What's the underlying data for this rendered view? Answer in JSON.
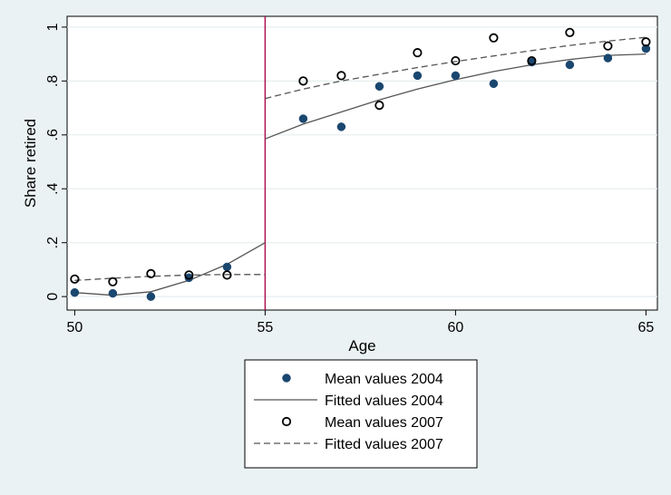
{
  "chart_data": {
    "type": "scatter",
    "xlabel": "Age",
    "ylabel": "Share retired",
    "xlim": [
      49.8,
      65.3
    ],
    "ylim": [
      -0.05,
      1.04
    ],
    "xticks": [
      50,
      55,
      60,
      65
    ],
    "yticks": [
      0,
      0.2,
      0.4,
      0.6,
      0.8,
      1
    ],
    "ytick_labels": [
      "0",
      ".2",
      ".4",
      ".6",
      ".8",
      "1"
    ],
    "grid": true,
    "cutoff_x": 55,
    "cutoff_color": "#b01050",
    "legend_position": "bottom-center",
    "series": [
      {
        "name": "Mean values 2004",
        "kind": "points",
        "marker": "filled-circle",
        "color": "#1a476f",
        "x": [
          50,
          51,
          52,
          53,
          54,
          56,
          57,
          58,
          59,
          60,
          61,
          62,
          63,
          64,
          65
        ],
        "y": [
          0.015,
          0.012,
          0.0,
          0.07,
          0.11,
          0.66,
          0.63,
          0.78,
          0.82,
          0.82,
          0.79,
          0.87,
          0.86,
          0.885,
          0.92
        ]
      },
      {
        "name": "Fitted values 2004",
        "kind": "line",
        "dash": "solid",
        "color": "#555555",
        "segments": [
          {
            "x": [
              50,
              51,
              52,
              53,
              54,
              55
            ],
            "y": [
              0.015,
              0.005,
              0.018,
              0.06,
              0.12,
              0.2
            ]
          },
          {
            "x": [
              55,
              56,
              57,
              58,
              59,
              60,
              61,
              62,
              63,
              64,
              65
            ],
            "y": [
              0.585,
              0.64,
              0.685,
              0.73,
              0.77,
              0.805,
              0.835,
              0.86,
              0.88,
              0.895,
              0.9
            ]
          }
        ]
      },
      {
        "name": "Mean values 2007",
        "kind": "points",
        "marker": "hollow-circle",
        "color": "#000000",
        "x": [
          50,
          51,
          52,
          53,
          54,
          56,
          57,
          58,
          59,
          60,
          61,
          62,
          63,
          64,
          65
        ],
        "y": [
          0.065,
          0.055,
          0.085,
          0.08,
          0.08,
          0.8,
          0.82,
          0.71,
          0.905,
          0.875,
          0.96,
          0.875,
          0.98,
          0.93,
          0.945
        ]
      },
      {
        "name": "Fitted values 2007",
        "kind": "line",
        "dash": "dashed",
        "color": "#555555",
        "segments": [
          {
            "x": [
              50,
              51,
              52,
              53,
              54,
              55
            ],
            "y": [
              0.06,
              0.068,
              0.075,
              0.08,
              0.082,
              0.082
            ]
          },
          {
            "x": [
              55,
              56,
              57,
              58,
              59,
              60,
              61,
              62,
              63,
              64,
              65
            ],
            "y": [
              0.735,
              0.77,
              0.8,
              0.825,
              0.85,
              0.872,
              0.893,
              0.913,
              0.932,
              0.948,
              0.962
            ]
          }
        ]
      }
    ]
  }
}
